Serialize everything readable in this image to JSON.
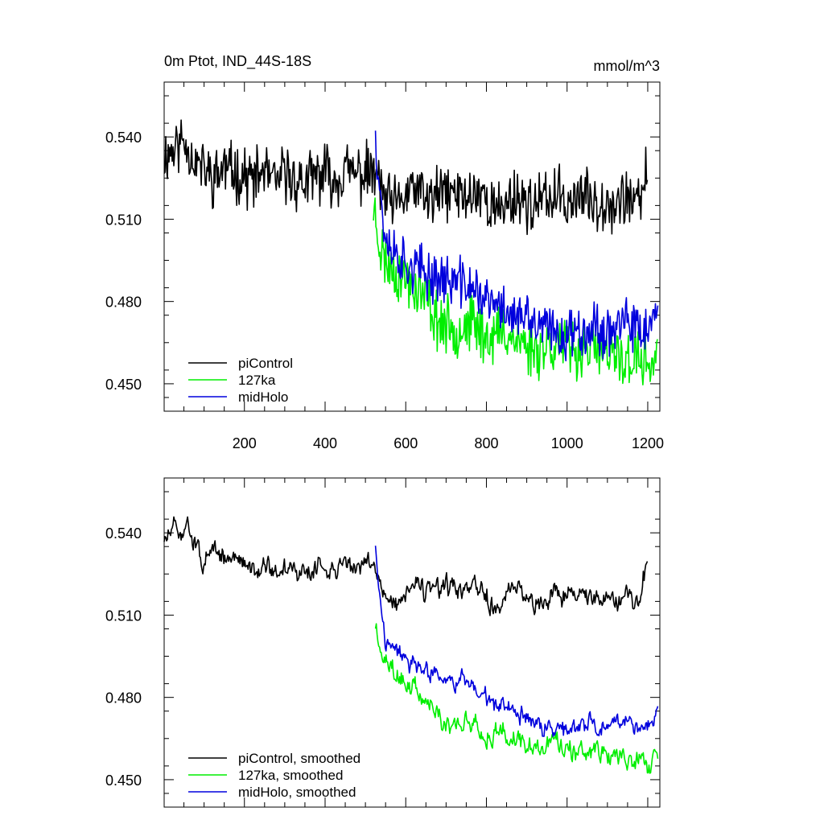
{
  "chart_data": [
    {
      "type": "line",
      "title": "0m Ptot, IND_44S-18S",
      "units": "mmol/m^3",
      "xlabel": "",
      "ylabel": "",
      "xlim": [
        1,
        1230
      ],
      "ylim": [
        0.44,
        0.56
      ],
      "xticks": [
        200,
        400,
        600,
        800,
        1000,
        1200
      ],
      "xtick_labels": [
        "200",
        "400",
        "600",
        "800",
        "1000",
        "1200"
      ],
      "yticks": [
        0.45,
        0.48,
        0.51,
        0.54
      ],
      "ytick_labels": [
        "0.450",
        "0.480",
        "0.510",
        "0.540"
      ],
      "grid": false,
      "legend_position": "bottom-left",
      "series": [
        {
          "name": "piControl",
          "color": "#000000",
          "points": [
            [
              1,
              0.533
            ],
            [
              25,
              0.536
            ],
            [
              50,
              0.539
            ],
            [
              75,
              0.532
            ],
            [
              100,
              0.528
            ],
            [
              125,
              0.525
            ],
            [
              150,
              0.529
            ],
            [
              175,
              0.527
            ],
            [
              200,
              0.526
            ],
            [
              225,
              0.524
            ],
            [
              250,
              0.528
            ],
            [
              275,
              0.522
            ],
            [
              300,
              0.527
            ],
            [
              325,
              0.524
            ],
            [
              350,
              0.523
            ],
            [
              375,
              0.525
            ],
            [
              400,
              0.527
            ],
            [
              425,
              0.524
            ],
            [
              450,
              0.528
            ],
            [
              475,
              0.526
            ],
            [
              500,
              0.527
            ],
            [
              525,
              0.526
            ],
            [
              550,
              0.517
            ],
            [
              575,
              0.514
            ],
            [
              600,
              0.519
            ],
            [
              625,
              0.521
            ],
            [
              650,
              0.517
            ],
            [
              675,
              0.518
            ],
            [
              700,
              0.52
            ],
            [
              725,
              0.519
            ],
            [
              750,
              0.518
            ],
            [
              775,
              0.52
            ],
            [
              800,
              0.518
            ],
            [
              825,
              0.512
            ],
            [
              850,
              0.516
            ],
            [
              875,
              0.519
            ],
            [
              900,
              0.516
            ],
            [
              925,
              0.515
            ],
            [
              950,
              0.517
            ],
            [
              975,
              0.519
            ],
            [
              1000,
              0.516
            ],
            [
              1025,
              0.519
            ],
            [
              1050,
              0.517
            ],
            [
              1075,
              0.516
            ],
            [
              1100,
              0.518
            ],
            [
              1125,
              0.515
            ],
            [
              1150,
              0.519
            ],
            [
              1175,
              0.514
            ],
            [
              1200,
              0.528
            ]
          ],
          "noise": 0.0085,
          "seed": 11
        },
        {
          "name": "127ka",
          "color": "#00ee00",
          "points": [
            [
              520,
              0.515
            ],
            [
              530,
              0.506
            ],
            [
              540,
              0.498
            ],
            [
              550,
              0.495
            ],
            [
              575,
              0.491
            ],
            [
              600,
              0.488
            ],
            [
              625,
              0.485
            ],
            [
              650,
              0.481
            ],
            [
              675,
              0.474
            ],
            [
              700,
              0.471
            ],
            [
              725,
              0.47
            ],
            [
              750,
              0.472
            ],
            [
              775,
              0.471
            ],
            [
              800,
              0.467
            ],
            [
              825,
              0.468
            ],
            [
              850,
              0.469
            ],
            [
              875,
              0.466
            ],
            [
              900,
              0.464
            ],
            [
              925,
              0.463
            ],
            [
              950,
              0.464
            ],
            [
              975,
              0.465
            ],
            [
              1000,
              0.463
            ],
            [
              1025,
              0.462
            ],
            [
              1050,
              0.464
            ],
            [
              1075,
              0.461
            ],
            [
              1100,
              0.459
            ],
            [
              1125,
              0.46
            ],
            [
              1150,
              0.458
            ],
            [
              1175,
              0.459
            ],
            [
              1200,
              0.457
            ],
            [
              1225,
              0.459
            ]
          ],
          "noise": 0.0085,
          "seed": 23
        },
        {
          "name": "midHolo",
          "color": "#0000dd",
          "points": [
            [
              525,
              0.545
            ],
            [
              530,
              0.53
            ],
            [
              540,
              0.515
            ],
            [
              550,
              0.503
            ],
            [
              575,
              0.498
            ],
            [
              600,
              0.494
            ],
            [
              625,
              0.492
            ],
            [
              650,
              0.49
            ],
            [
              675,
              0.489
            ],
            [
              700,
              0.488
            ],
            [
              725,
              0.487
            ],
            [
              750,
              0.486
            ],
            [
              775,
              0.484
            ],
            [
              800,
              0.48
            ],
            [
              825,
              0.478
            ],
            [
              850,
              0.477
            ],
            [
              875,
              0.474
            ],
            [
              900,
              0.473
            ],
            [
              925,
              0.471
            ],
            [
              950,
              0.47
            ],
            [
              975,
              0.468
            ],
            [
              1000,
              0.468
            ],
            [
              1025,
              0.47
            ],
            [
              1050,
              0.471
            ],
            [
              1075,
              0.47
            ],
            [
              1100,
              0.469
            ],
            [
              1125,
              0.472
            ],
            [
              1150,
              0.471
            ],
            [
              1175,
              0.469
            ],
            [
              1200,
              0.47
            ],
            [
              1225,
              0.474
            ]
          ],
          "noise": 0.0075,
          "seed": 37
        }
      ]
    },
    {
      "type": "line",
      "title": "",
      "xlabel": "",
      "ylabel": "",
      "xlim": [
        1,
        1230
      ],
      "ylim": [
        0.44,
        0.56
      ],
      "xticks": [
        200,
        400,
        600,
        800,
        1000,
        1200
      ],
      "xtick_labels": [],
      "yticks": [
        0.45,
        0.48,
        0.51,
        0.54
      ],
      "ytick_labels": [
        "0.450",
        "0.480",
        "0.510",
        "0.540"
      ],
      "grid": false,
      "legend_position": "bottom-left",
      "series": [
        {
          "name": "piControl, smoothed",
          "color": "#000000",
          "points": [
            [
              1,
              0.537
            ],
            [
              25,
              0.541
            ],
            [
              50,
              0.54
            ],
            [
              60,
              0.546
            ],
            [
              75,
              0.536
            ],
            [
              100,
              0.53
            ],
            [
              125,
              0.532
            ],
            [
              150,
              0.531
            ],
            [
              175,
              0.53
            ],
            [
              200,
              0.529
            ],
            [
              225,
              0.527
            ],
            [
              250,
              0.53
            ],
            [
              275,
              0.524
            ],
            [
              300,
              0.528
            ],
            [
              325,
              0.526
            ],
            [
              350,
              0.525
            ],
            [
              375,
              0.527
            ],
            [
              400,
              0.528
            ],
            [
              425,
              0.526
            ],
            [
              450,
              0.53
            ],
            [
              475,
              0.527
            ],
            [
              500,
              0.528
            ],
            [
              525,
              0.528
            ],
            [
              550,
              0.517
            ],
            [
              575,
              0.514
            ],
            [
              600,
              0.518
            ],
            [
              625,
              0.521
            ],
            [
              650,
              0.518
            ],
            [
              675,
              0.519
            ],
            [
              700,
              0.52
            ],
            [
              725,
              0.519
            ],
            [
              750,
              0.518
            ],
            [
              775,
              0.52
            ],
            [
              800,
              0.517
            ],
            [
              825,
              0.511
            ],
            [
              850,
              0.516
            ],
            [
              875,
              0.52
            ],
            [
              900,
              0.516
            ],
            [
              925,
              0.515
            ],
            [
              950,
              0.517
            ],
            [
              975,
              0.519
            ],
            [
              1000,
              0.516
            ],
            [
              1025,
              0.519
            ],
            [
              1050,
              0.517
            ],
            [
              1075,
              0.516
            ],
            [
              1100,
              0.518
            ],
            [
              1125,
              0.515
            ],
            [
              1150,
              0.518
            ],
            [
              1175,
              0.513
            ],
            [
              1200,
              0.531
            ]
          ],
          "noise": 0.0045,
          "seed": 51
        },
        {
          "name": "127ka, smoothed",
          "color": "#00ee00",
          "points": [
            [
              525,
              0.505
            ],
            [
              530,
              0.5
            ],
            [
              540,
              0.496
            ],
            [
              550,
              0.494
            ],
            [
              575,
              0.49
            ],
            [
              600,
              0.486
            ],
            [
              625,
              0.483
            ],
            [
              650,
              0.479
            ],
            [
              675,
              0.474
            ],
            [
              700,
              0.47
            ],
            [
              725,
              0.47
            ],
            [
              750,
              0.472
            ],
            [
              775,
              0.47
            ],
            [
              800,
              0.466
            ],
            [
              825,
              0.468
            ],
            [
              850,
              0.469
            ],
            [
              875,
              0.466
            ],
            [
              900,
              0.463
            ],
            [
              925,
              0.462
            ],
            [
              950,
              0.463
            ],
            [
              975,
              0.464
            ],
            [
              1000,
              0.462
            ],
            [
              1025,
              0.461
            ],
            [
              1050,
              0.463
            ],
            [
              1075,
              0.46
            ],
            [
              1100,
              0.458
            ],
            [
              1125,
              0.459
            ],
            [
              1150,
              0.457
            ],
            [
              1175,
              0.458
            ],
            [
              1200,
              0.456
            ],
            [
              1225,
              0.458
            ]
          ],
          "noise": 0.0045,
          "seed": 63
        },
        {
          "name": "midHolo, smoothed",
          "color": "#0000dd",
          "points": [
            [
              525,
              0.537
            ],
            [
              530,
              0.525
            ],
            [
              540,
              0.51
            ],
            [
              550,
              0.5
            ],
            [
              575,
              0.497
            ],
            [
              600,
              0.493
            ],
            [
              625,
              0.491
            ],
            [
              650,
              0.489
            ],
            [
              675,
              0.488
            ],
            [
              700,
              0.487
            ],
            [
              725,
              0.486
            ],
            [
              750,
              0.485
            ],
            [
              775,
              0.483
            ],
            [
              800,
              0.479
            ],
            [
              825,
              0.477
            ],
            [
              850,
              0.476
            ],
            [
              875,
              0.474
            ],
            [
              900,
              0.472
            ],
            [
              925,
              0.47
            ],
            [
              950,
              0.469
            ],
            [
              975,
              0.468
            ],
            [
              1000,
              0.467
            ],
            [
              1025,
              0.469
            ],
            [
              1050,
              0.47
            ],
            [
              1075,
              0.469
            ],
            [
              1100,
              0.468
            ],
            [
              1125,
              0.471
            ],
            [
              1150,
              0.47
            ],
            [
              1175,
              0.468
            ],
            [
              1200,
              0.469
            ],
            [
              1225,
              0.476
            ]
          ],
          "noise": 0.004,
          "seed": 77
        }
      ]
    }
  ]
}
